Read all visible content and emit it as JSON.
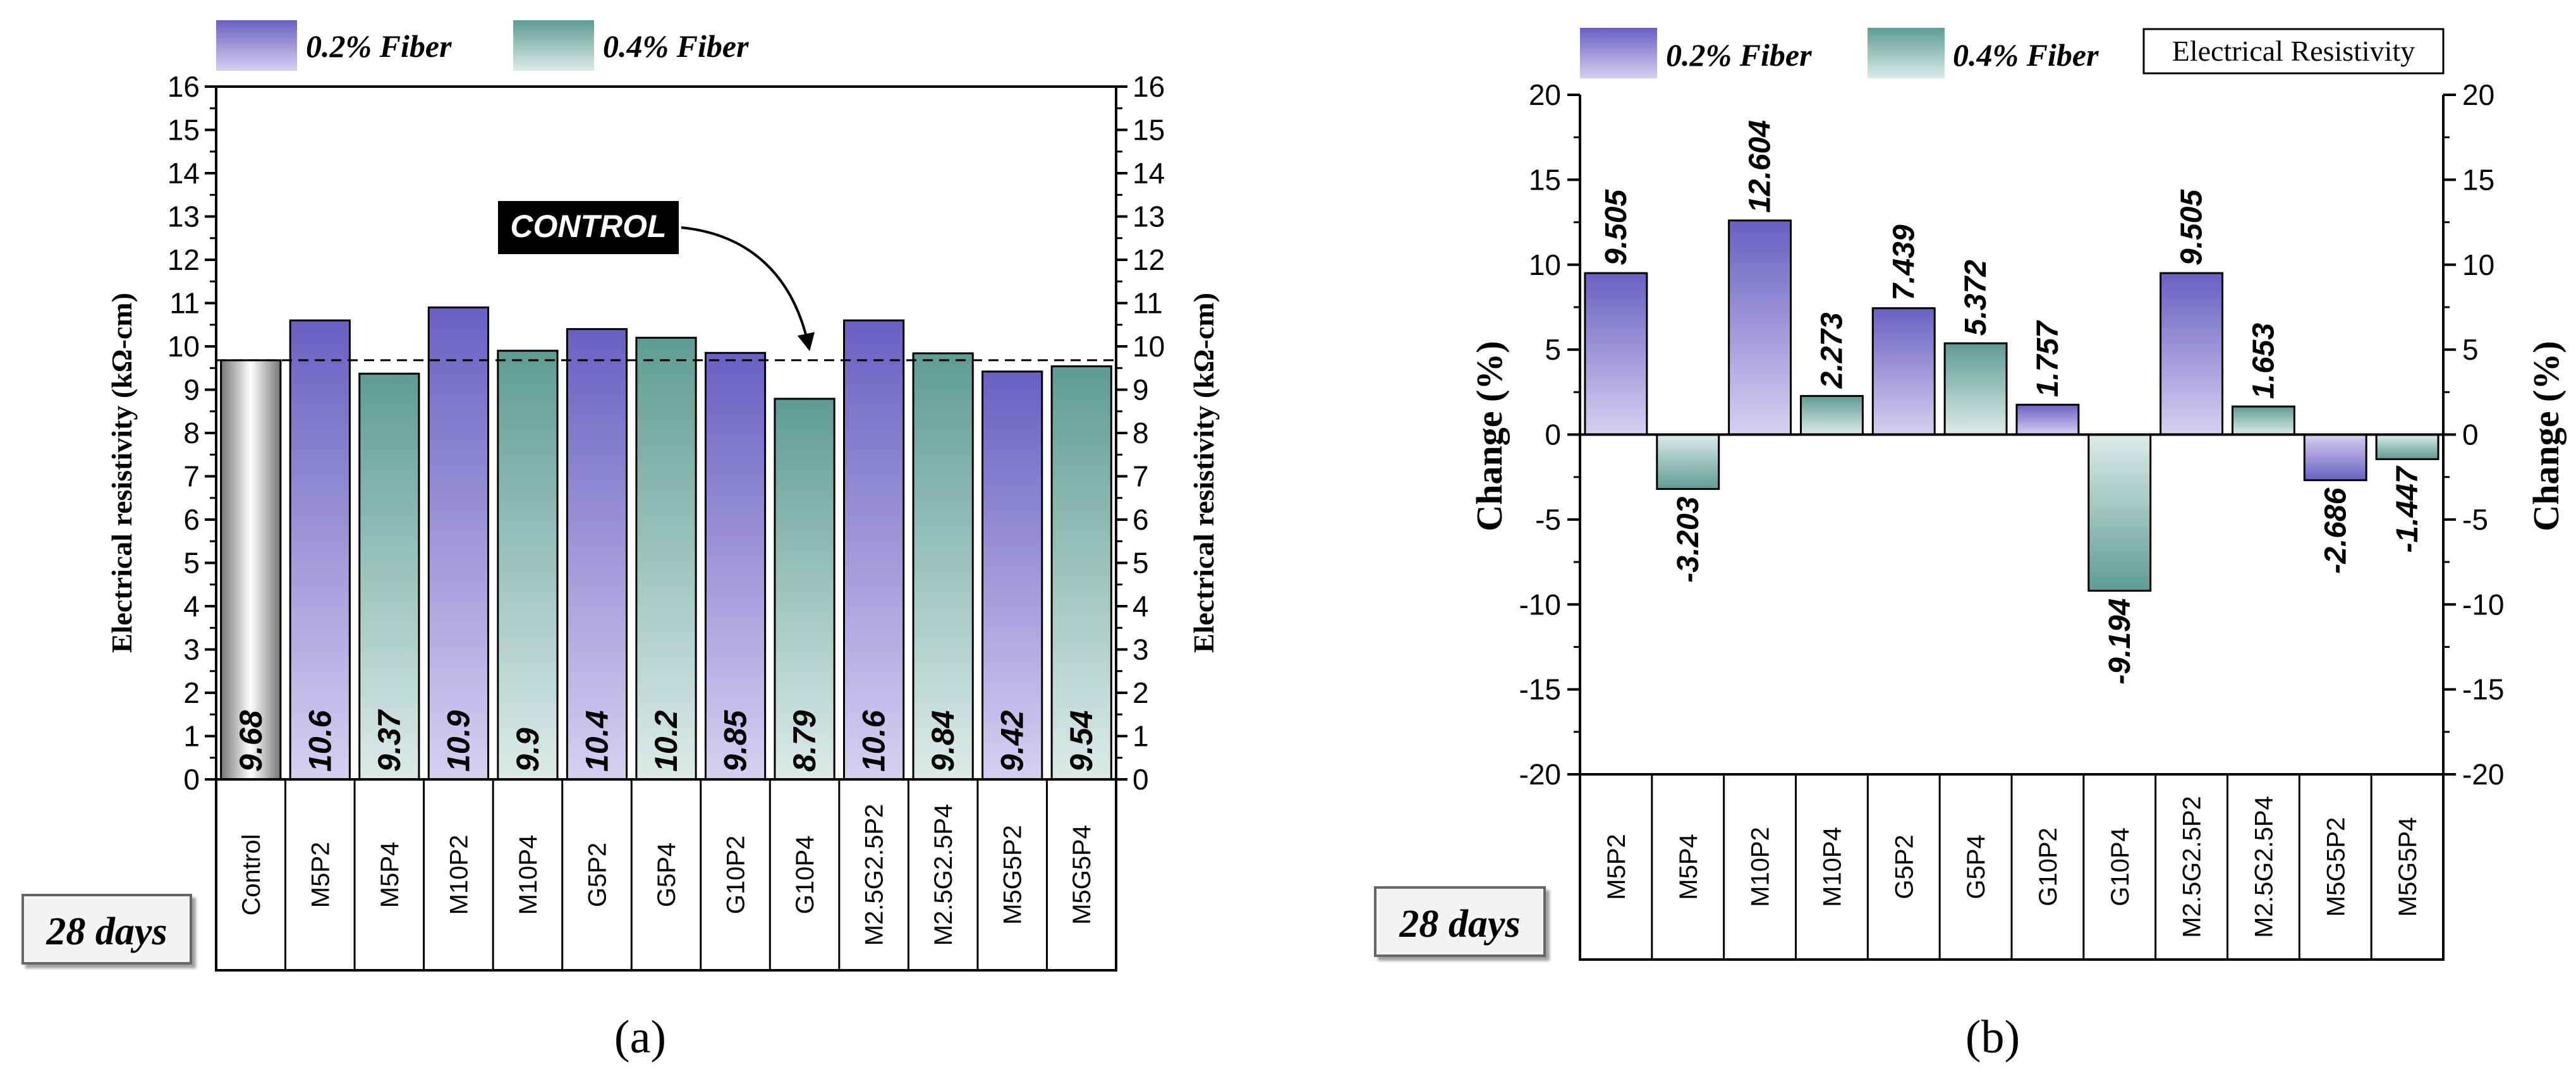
{
  "colors": {
    "p2_top": "#6a5fc1",
    "p2_bottom": "#d6d0f1",
    "p4_top": "#5f9c93",
    "p4_bottom": "#dcebe8",
    "control_dark": "#777777",
    "control_light": "#ffffff",
    "axis": "#000000"
  },
  "legend": {
    "p2": "0.2% Fiber",
    "p4": "0.4% Fiber",
    "er": "Electrical Resistivity"
  },
  "panel_labels": {
    "a": "(a)",
    "b": "(b)"
  },
  "badges": {
    "a": "28 days",
    "b": "28 days"
  },
  "annotation": {
    "text": "CONTROL"
  },
  "chart_data": [
    {
      "type": "bar",
      "title": "",
      "xlabel": "",
      "ylabel": "Electrical resistivity (kΩ-cm)",
      "ylabel_right": "Electrical resistivity (kΩ-cm)",
      "ylim": [
        0,
        16
      ],
      "yticks": [
        0,
        1,
        2,
        3,
        4,
        5,
        6,
        7,
        8,
        9,
        10,
        11,
        12,
        13,
        14,
        15,
        16
      ],
      "categories": [
        "Control",
        "M5P2",
        "M5P4",
        "M10P2",
        "M10P4",
        "G5P2",
        "G5P4",
        "G10P2",
        "G10P4",
        "M2.5G2.5P2",
        "M2.5G2.5P4",
        "M5G5P2",
        "M5G5P4"
      ],
      "values": [
        9.68,
        10.6,
        9.37,
        10.9,
        9.9,
        10.4,
        10.2,
        9.85,
        8.79,
        10.6,
        9.84,
        9.42,
        9.54
      ],
      "labels": [
        "9.68",
        "10.6",
        "9.37",
        "10.9",
        "9.9",
        "10.4",
        "10.2",
        "9.85",
        "8.79",
        "10.6",
        "9.84",
        "9.42",
        "9.54"
      ],
      "groups": [
        "control",
        "p2",
        "p4",
        "p2",
        "p4",
        "p2",
        "p4",
        "p2",
        "p4",
        "p2",
        "p4",
        "p2",
        "p4"
      ],
      "reference_line": 9.68,
      "legend": [
        "0.2% Fiber",
        "0.4% Fiber"
      ]
    },
    {
      "type": "bar",
      "title": "",
      "xlabel": "",
      "ylabel": "Change (%)",
      "ylabel_right": "Change (%)",
      "ylim": [
        -20,
        20
      ],
      "yticks": [
        -20,
        -15,
        -10,
        -5,
        0,
        5,
        10,
        15,
        20
      ],
      "categories": [
        "M5P2",
        "M5P4",
        "M10P2",
        "M10P4",
        "G5P2",
        "G5P4",
        "G10P2",
        "G10P4",
        "M2.5G2.5P2",
        "M2.5G2.5P4",
        "M5G5P2",
        "M5G5P4"
      ],
      "values": [
        9.505,
        -3.203,
        12.604,
        2.273,
        7.439,
        5.372,
        1.757,
        -9.194,
        9.505,
        1.653,
        -2.686,
        -1.447
      ],
      "labels": [
        "9.505",
        "-3.203",
        "12.604",
        "2.273",
        "7.439",
        "5.372",
        "1.757",
        "-9.194",
        "9.505",
        "1.653",
        "-2.686",
        "-1.447"
      ],
      "groups": [
        "p2",
        "p4",
        "p2",
        "p4",
        "p2",
        "p4",
        "p2",
        "p4",
        "p2",
        "p4",
        "p2",
        "p4"
      ],
      "legend": [
        "0.2% Fiber",
        "0.4% Fiber",
        "Electrical Resistivity"
      ]
    }
  ]
}
